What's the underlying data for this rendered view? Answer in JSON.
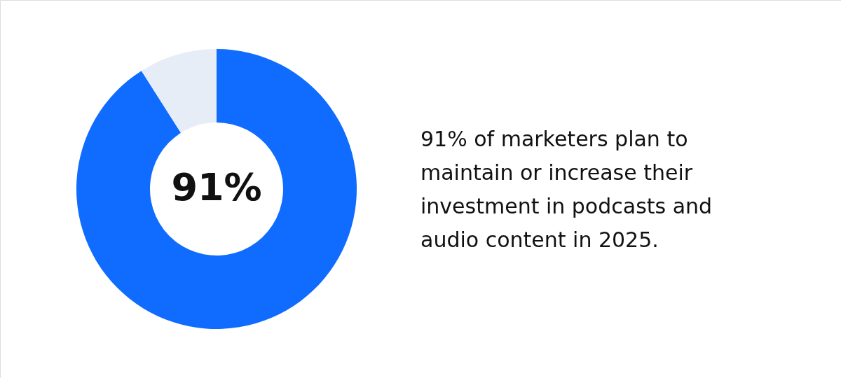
{
  "chart_data": {
    "type": "donut",
    "categories": [
      null,
      null
    ],
    "values": [
      91,
      9
    ],
    "colors": [
      "#0f6cff",
      "#e7edf7"
    ],
    "value_labels": [
      "91%",
      null
    ],
    "annotations": [
      "91% of marketers plan to maintain or increase their investment in podcasts and audio content in 2025."
    ],
    "legend": false
  }
}
